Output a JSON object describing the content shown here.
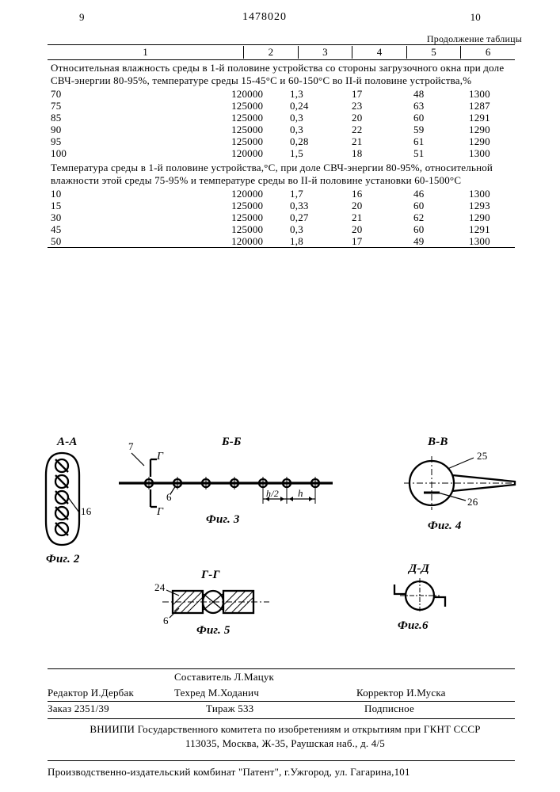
{
  "page": {
    "left_num": "9",
    "right_num": "10",
    "patent_no": "1478020",
    "table_continuation": "Продолжение таблицы"
  },
  "table": {
    "headers": [
      "1",
      "2",
      "3",
      "4",
      "5",
      "6"
    ],
    "block1": {
      "text": "Относительная влажность среды в 1-й половине устройства со стороны загрузочного окна при доле СВЧ-энергии 80-95%, температуре среды 15-45°С и 60-150°С во II-й половине устройства,%",
      "rows": [
        {
          "a": "70",
          "b": "120000",
          "c": "1,3",
          "d": "17",
          "e": "48",
          "f": "1300"
        },
        {
          "a": "75",
          "b": "125000",
          "c": "0,24",
          "d": "23",
          "e": "63",
          "f": "1287"
        },
        {
          "a": "85",
          "b": "125000",
          "c": "0,3",
          "d": "20",
          "e": "60",
          "f": "1291"
        },
        {
          "a": "90",
          "b": "125000",
          "c": "0,3",
          "d": "22",
          "e": "59",
          "f": "1290"
        },
        {
          "a": "95",
          "b": "125000",
          "c": "0,28",
          "d": "21",
          "e": "61",
          "f": "1290"
        },
        {
          "a": "100",
          "b": "120000",
          "c": "1,5",
          "d": "18",
          "e": "51",
          "f": "1300"
        }
      ]
    },
    "block2": {
      "text": "Температура среды в 1-й половине устройства,°С, при доле СВЧ-энергии 80-95%, относительной влажности этой среды 75-95% и температуре среды во II-й половине установки 60-1500°С",
      "rows": [
        {
          "a": "10",
          "b": "120000",
          "c": "1,7",
          "d": "16",
          "e": "46",
          "f": "1300"
        },
        {
          "a": "15",
          "b": "125000",
          "c": "0,33",
          "d": "20",
          "e": "60",
          "f": "1293"
        },
        {
          "a": "30",
          "b": "125000",
          "c": "0,27",
          "d": "21",
          "e": "62",
          "f": "1290"
        },
        {
          "a": "45",
          "b": "125000",
          "c": "0,3",
          "d": "20",
          "e": "60",
          "f": "1291"
        },
        {
          "a": "50",
          "b": "120000",
          "c": "1,8",
          "d": "17",
          "e": "49",
          "f": "1300"
        }
      ]
    }
  },
  "figs": {
    "aa": "А-А",
    "bb": "Б-Б",
    "vv": "В-В",
    "gg": "Г-Г",
    "dd": "Д-Д",
    "f2": "Фиг. 2",
    "f3": "Фиг. 3",
    "f4": "Фиг. 4",
    "f5": "Фиг. 5",
    "f6": "Фиг.6",
    "n6": "6",
    "n7": "7",
    "n16": "16",
    "n24": "24",
    "n25": "25",
    "n26": "26",
    "g": "Г",
    "h": "h",
    "h2": "h/2"
  },
  "credits": {
    "compiler_lbl": "Составитель",
    "compiler": "Л.Мацук",
    "editor_lbl": "Редактор",
    "editor": "И.Дербак",
    "techred_lbl": "Техред",
    "techred": "М.Ходанич",
    "corrector_lbl": "Корректор",
    "corrector": "И.Муска"
  },
  "order": {
    "zakaz_lbl": "Заказ",
    "zakaz": "2351/39",
    "tirazh_lbl": "Тираж",
    "tirazh": "533",
    "signed": "Подписное"
  },
  "address": {
    "line1": "ВНИИПИ Государственного комитета по изобретениям и открытиям при ГКНТ СССР",
    "line2": "113035, Москва, Ж-35, Раушская наб., д. 4/5"
  },
  "producer": "Производственно-издательский комбинат \"Патент\", г.Ужгород, ул. Гагарина,101"
}
